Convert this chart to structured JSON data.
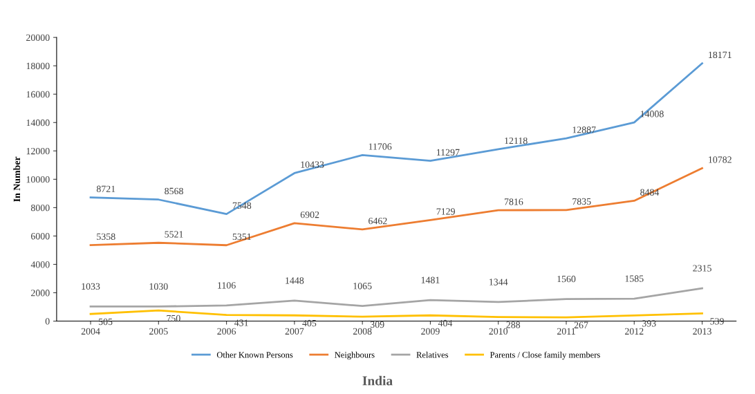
{
  "chart_data": {
    "type": "line",
    "title": "India",
    "ylabel": "In Number",
    "categories": [
      "2004",
      "2005",
      "2006",
      "2007",
      "2008",
      "2009",
      "2010",
      "2011",
      "2012",
      "2013"
    ],
    "series": [
      {
        "name": "Other Known Persons",
        "color": "#5b9bd5",
        "values": [
          8721,
          8568,
          7548,
          10433,
          11706,
          11297,
          12118,
          12887,
          14008,
          18171
        ]
      },
      {
        "name": "Neighbours",
        "color": "#ed7d31",
        "values": [
          5358,
          5521,
          5351,
          6902,
          6462,
          7129,
          7816,
          7835,
          8484,
          10782
        ]
      },
      {
        "name": "Relatives",
        "color": "#a5a5a5",
        "values": [
          1033,
          1030,
          1106,
          1448,
          1065,
          1481,
          1344,
          1560,
          1585,
          2315
        ]
      },
      {
        "name": "Parents / Close family members",
        "color": "#ffc000",
        "values": [
          505,
          750,
          431,
          405,
          309,
          404,
          288,
          267,
          393,
          539
        ]
      }
    ],
    "ylim": [
      0,
      20000
    ],
    "yticks": [
      0,
      2000,
      4000,
      6000,
      8000,
      10000,
      12000,
      14000,
      16000,
      18000,
      20000
    ],
    "data_labels": true,
    "legend": "bottom",
    "grid": false,
    "marker": "none",
    "line_style": "solid"
  }
}
